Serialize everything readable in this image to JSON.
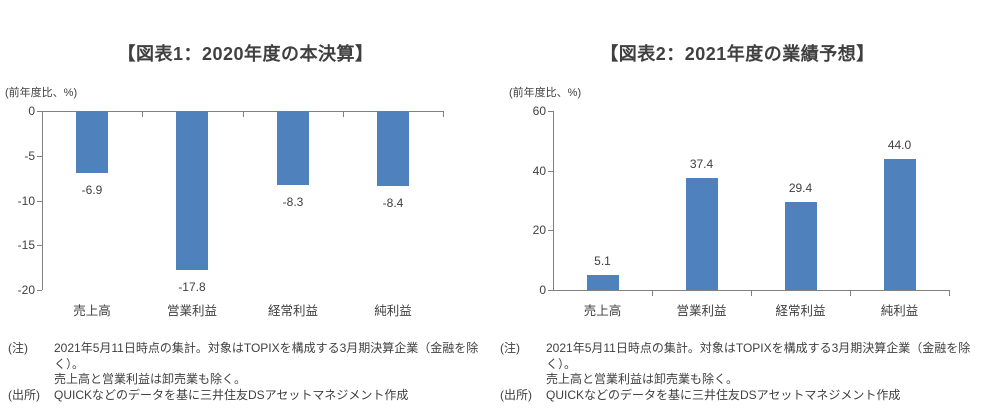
{
  "panels": [
    {
      "title": "【図表1：2020年度の本決算】",
      "unit_label": "(前年度比、%)",
      "note_label": "(注)",
      "note_line1": "2021年5月11日時点の集計。対象はTOPIXを構成する3月期決算企業（金融を除く）。",
      "note_line2": "売上高と営業利益は卸売業も除く。",
      "source_label": "(出所)",
      "source_text": "QUICKなどのデータを基に三井住友DSアセットマネジメント作成"
    },
    {
      "title": "【図表2：2021年度の業績予想】",
      "unit_label": "(前年度比、%)",
      "note_label": "(注)",
      "note_line1": "2021年5月11日時点の集計。対象はTOPIXを構成する3月期決算企業（金融を除く）。",
      "note_line2": "売上高と営業利益は卸売業も除く。",
      "source_label": "(出所)",
      "source_text": "QUICKなどのデータを基に三井住友DSアセットマネジメント作成"
    }
  ],
  "chart_data": [
    {
      "type": "bar",
      "title": "【図表1：2020年度の本決算】",
      "categories": [
        "売上高",
        "営業利益",
        "経常利益",
        "純利益"
      ],
      "values": [
        -6.9,
        -17.8,
        -8.3,
        -8.4
      ],
      "value_labels": [
        "-6.9",
        "-17.8",
        "-8.3",
        "-8.4"
      ],
      "ylabel": "(前年度比、%)",
      "ylim": [
        -20,
        0
      ],
      "yticks": [
        0,
        -5,
        -10,
        -15,
        -20
      ],
      "bar_color": "#4F81BD",
      "axis_color": "#808080",
      "text_color": "#404040",
      "grid": false,
      "legend": "none"
    },
    {
      "type": "bar",
      "title": "【図表2：2021年度の業績予想】",
      "categories": [
        "売上高",
        "営業利益",
        "経常利益",
        "純利益"
      ],
      "values": [
        5.1,
        37.4,
        29.4,
        44.0
      ],
      "value_labels": [
        "5.1",
        "37.4",
        "29.4",
        "44.0"
      ],
      "ylabel": "(前年度比、%)",
      "ylim": [
        0,
        60
      ],
      "yticks": [
        0,
        20,
        40,
        60
      ],
      "bar_color": "#4F81BD",
      "axis_color": "#808080",
      "text_color": "#404040",
      "grid": false,
      "legend": "none"
    }
  ]
}
